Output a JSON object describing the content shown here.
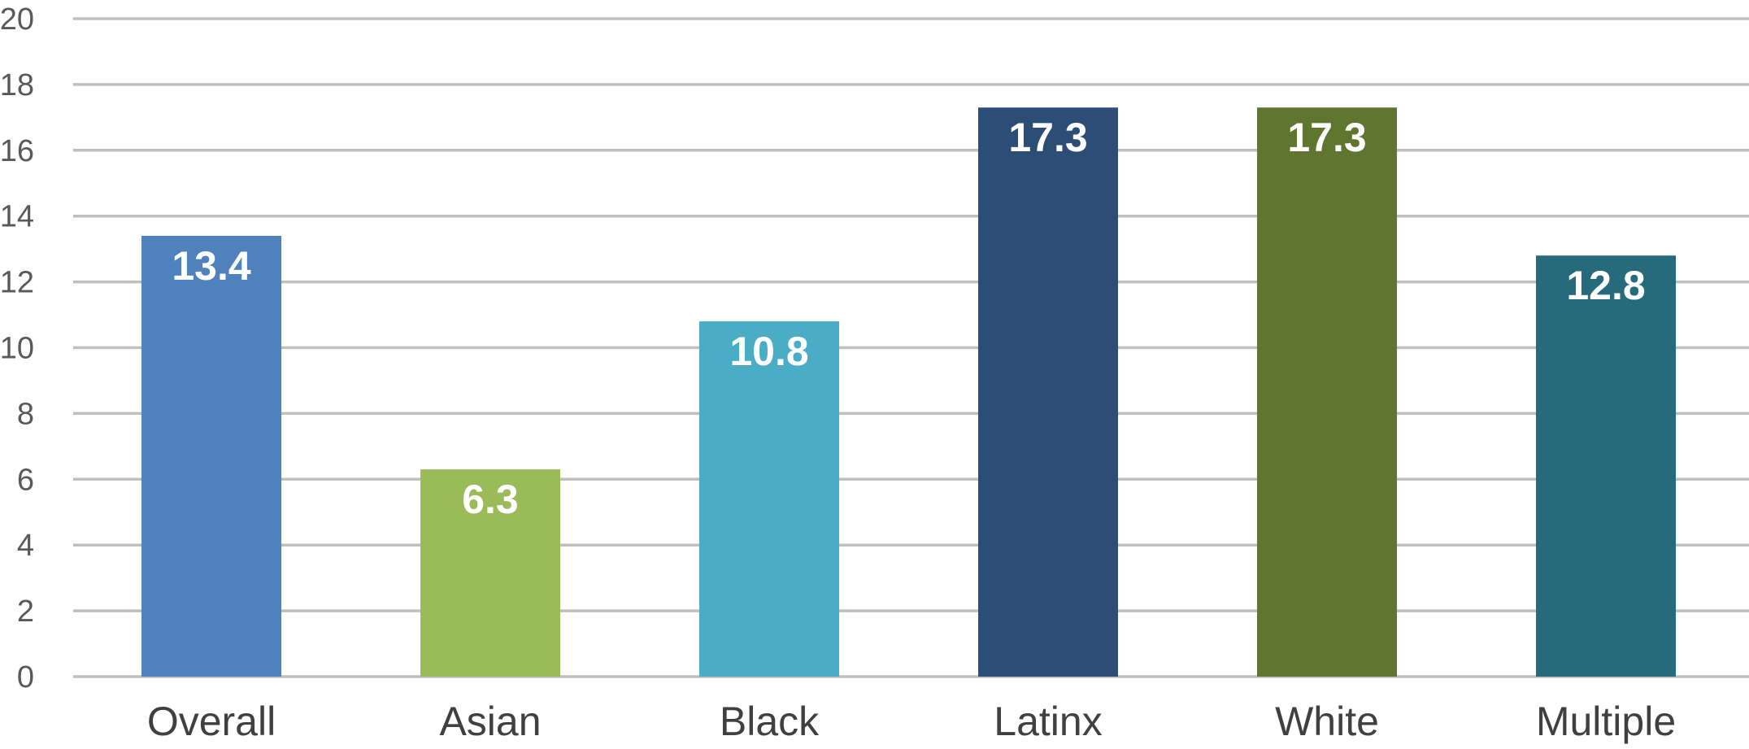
{
  "chart_data": {
    "type": "bar",
    "title": "",
    "xlabel": "",
    "ylabel": "",
    "categories": [
      "Overall",
      "Asian",
      "Black",
      "Latinx",
      "White",
      "Multiple"
    ],
    "values": [
      13.4,
      6.3,
      10.8,
      17.3,
      17.3,
      12.8
    ],
    "data_labels": [
      "13.4",
      "6.3",
      "10.8",
      "17.3",
      "17.3",
      "12.8"
    ],
    "colors": [
      "#4f81bd",
      "#9bbb59",
      "#4bacc6",
      "#2c4d75",
      "#5f7530",
      "#276a7c"
    ],
    "ylim": [
      0,
      20
    ],
    "y_ticks": [
      0,
      2,
      4,
      6,
      8,
      10,
      12,
      14,
      16,
      18,
      20
    ],
    "y_tick_labels": [
      "0",
      "2",
      "4",
      "6",
      "8",
      "10",
      "12",
      "14",
      "16",
      "18",
      "20"
    ],
    "grid": true,
    "legend": "none"
  }
}
